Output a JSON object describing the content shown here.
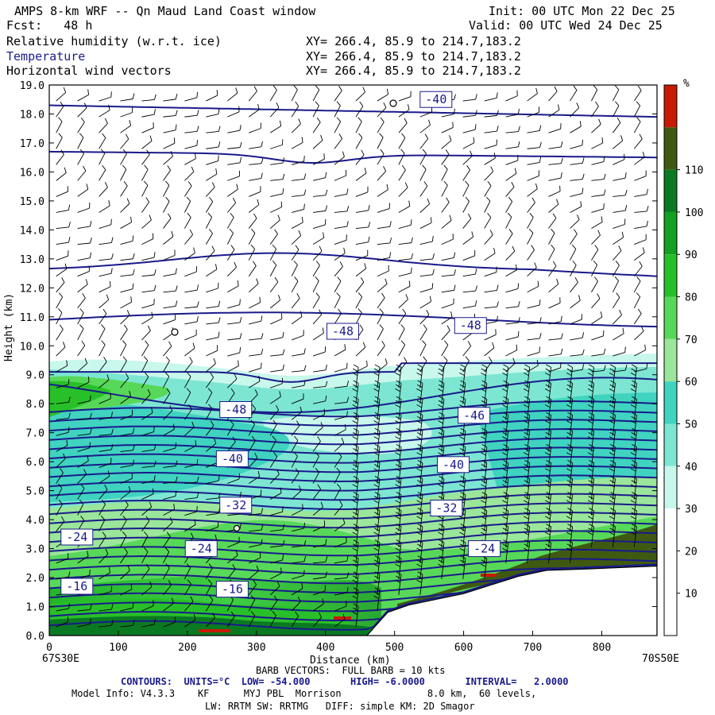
{
  "header": {
    "title_left": "AMPS 8-km WRF -- Qn Maud Land Coast window",
    "init": "Init: 00 UTC Mon 22 Dec 25",
    "fcst": "Fcst:   48 h",
    "valid": "Valid: 00 UTC Wed 24 Dec 25",
    "fields": [
      {
        "label": "Relative humidity (w.r.t. ice)",
        "xy": "XY= 266.4, 85.9 to 214.7,183.2",
        "color": "#000000"
      },
      {
        "label": "Temperature",
        "xy": "XY= 266.4, 85.9 to 214.7,183.2",
        "color": "#1a1a8c"
      },
      {
        "label": "Horizontal wind vectors",
        "xy": "XY= 266.4, 85.9 to 214.7,183.2",
        "color": "#000000"
      }
    ]
  },
  "axes": {
    "ylabel": "Height (km)",
    "xlabel": "Distance (km)",
    "left_corner": "67S30E",
    "right_corner": "70S50E"
  },
  "colorbar": {
    "unit": "%",
    "ticks": [
      "10",
      "20",
      "30",
      "40",
      "50",
      "60",
      "70",
      "80",
      "90",
      "100",
      "110"
    ],
    "colors": [
      "#ffffff",
      "#ffffff",
      "#ffffff",
      "#c8f7ec",
      "#7ce6d2",
      "#3fd3c0",
      "#9ae69a",
      "#58d858",
      "#28c028",
      "#14a020",
      "#0a7a22",
      "#3f5a10",
      "#c81a00"
    ]
  },
  "footer": {
    "barb": "BARB VECTORS:  FULL BARB = 10 kts",
    "contours": "CONTOURS:  UNITS=°C  LOW= -54.000       HIGH= -6.0000       INTERVAL=   2.0000",
    "model1": "Model Info: V4.3.3    KF      MYJ PBL  Morrison               8.0 km,  60 levels,",
    "model2": "LW: RRTM SW: RRTMG   DIFF: simple KM: 2D Smagor"
  },
  "chart_data": {
    "type": "cross-section",
    "title": "AMPS 8-km WRF -- Qn Maud Land Coast window",
    "xlabel": "Distance (km)",
    "ylabel": "Height (km)",
    "xlim": [
      0,
      880
    ],
    "ylim": [
      0,
      19
    ],
    "xticks": [
      0,
      100,
      200,
      300,
      400,
      500,
      600,
      700,
      800
    ],
    "yticks": [
      0.0,
      1.0,
      2.0,
      3.0,
      4.0,
      5.0,
      6.0,
      7.0,
      8.0,
      9.0,
      10.0,
      11.0,
      12.0,
      13.0,
      14.0,
      15.0,
      16.0,
      17.0,
      18.0,
      19.0
    ],
    "filled_field": "Relative humidity (w.r.t. ice) %",
    "filled_levels": [
      10,
      20,
      30,
      40,
      50,
      60,
      70,
      80,
      90,
      100,
      110
    ],
    "contour_field": "Temperature (°C)",
    "contour_low": -54.0,
    "contour_high": -6.0,
    "contour_interval": 2.0,
    "contour_labels": [
      {
        "text": "-40",
        "x": 560,
        "y": 18.5
      },
      {
        "text": "-48",
        "x": 425,
        "y": 10.5
      },
      {
        "text": "-48",
        "x": 610,
        "y": 10.7
      },
      {
        "text": "-48",
        "x": 270,
        "y": 7.8
      },
      {
        "text": "-46",
        "x": 615,
        "y": 7.6
      },
      {
        "text": "-40",
        "x": 265,
        "y": 6.1
      },
      {
        "text": "-40",
        "x": 585,
        "y": 5.9
      },
      {
        "text": "-32",
        "x": 270,
        "y": 4.5
      },
      {
        "text": "-32",
        "x": 575,
        "y": 4.4
      },
      {
        "text": "-24",
        "x": 40,
        "y": 3.4
      },
      {
        "text": "-24",
        "x": 220,
        "y": 3.0
      },
      {
        "text": "-24",
        "x": 630,
        "y": 3.0
      },
      {
        "text": "-16",
        "x": 40,
        "y": 1.7
      },
      {
        "text": "-16",
        "x": 265,
        "y": 1.6
      }
    ],
    "terrain_km": [
      {
        "x": 0,
        "h": 0.0
      },
      {
        "x": 460,
        "h": 0.0
      },
      {
        "x": 475,
        "h": 0.4
      },
      {
        "x": 490,
        "h": 0.8
      },
      {
        "x": 520,
        "h": 1.05
      },
      {
        "x": 560,
        "h": 1.25
      },
      {
        "x": 600,
        "h": 1.45
      },
      {
        "x": 640,
        "h": 1.75
      },
      {
        "x": 680,
        "h": 2.05
      },
      {
        "x": 720,
        "h": 2.25
      },
      {
        "x": 780,
        "h": 2.3
      },
      {
        "x": 830,
        "h": 2.35
      },
      {
        "x": 880,
        "h": 2.4
      }
    ],
    "vectors": "Horizontal wind vectors (barbs)"
  }
}
